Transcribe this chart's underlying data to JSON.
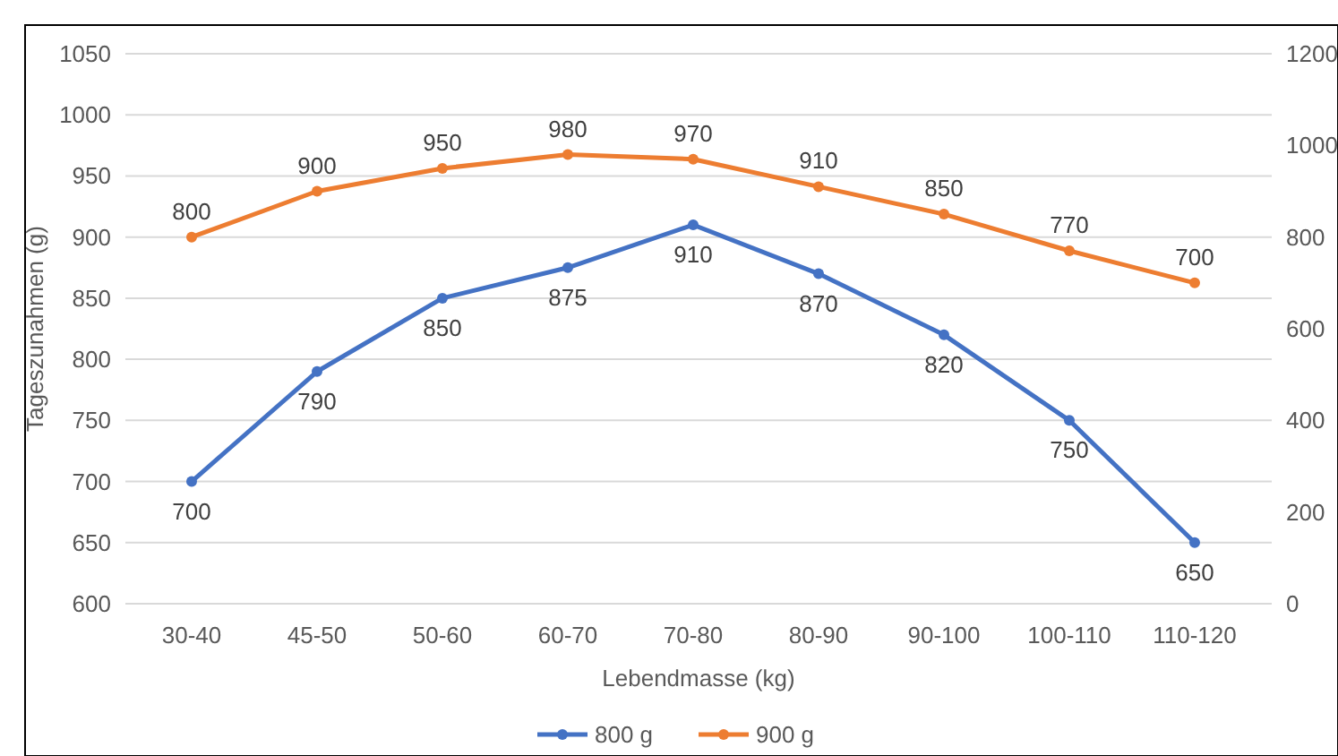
{
  "chart_data": {
    "type": "line",
    "xlabel": "Lebendmasse (kg)",
    "ylabel": "Tageszunahmen (g)",
    "categories": [
      "30-40",
      "45-50",
      "50-60",
      "60-70",
      "70-80",
      "80-90",
      "90-100",
      "100-110",
      "110-120"
    ],
    "series": [
      {
        "name": "800 g",
        "color": "#4472c4",
        "values": [
          700,
          790,
          850,
          875,
          910,
          870,
          820,
          750,
          650
        ]
      },
      {
        "name": "900 g",
        "color": "#ed7d31",
        "axis": "y2",
        "values": [
          800,
          900,
          950,
          980,
          970,
          910,
          850,
          770,
          700
        ]
      }
    ],
    "ylim": [
      600,
      1050
    ],
    "yticks": [
      600,
      650,
      700,
      750,
      800,
      850,
      900,
      950,
      1000,
      1050
    ],
    "y2lim": [
      0,
      1200
    ],
    "y2ticks": [
      0,
      200,
      400,
      600,
      800,
      1000,
      1200
    ],
    "grid": "y",
    "legend": "bottom",
    "marker": "circle",
    "line_style": "solid",
    "data_labels": true
  }
}
